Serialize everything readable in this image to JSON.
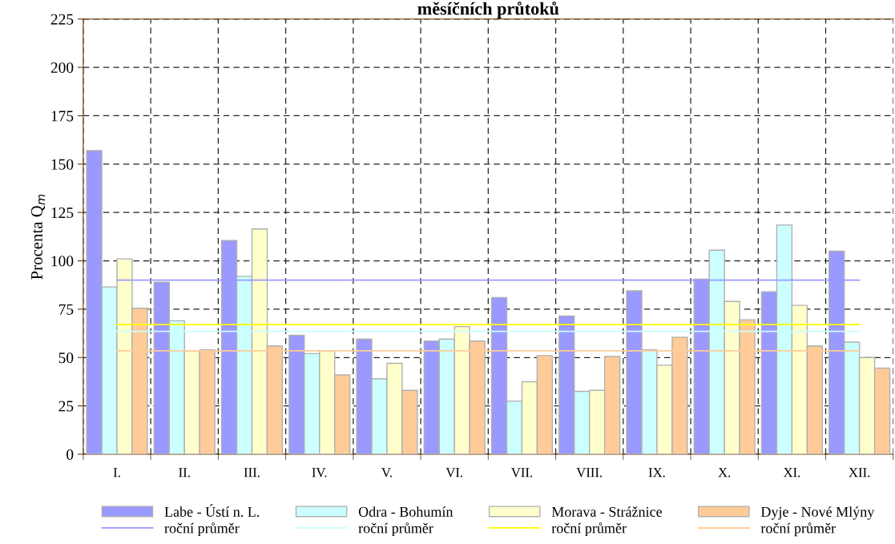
{
  "chart_data": {
    "type": "bar",
    "title": "měsíčních průtoků",
    "ylabel": "Procenta Q$_{m}$",
    "categories": [
      "I.",
      "II.",
      "III.",
      "IV.",
      "V.",
      "VI.",
      "VII.",
      "VIII.",
      "IX.",
      "X.",
      "XI.",
      "XII."
    ],
    "series": [
      {
        "name": "Labe - Ústí n. L.",
        "color": "#9999ff",
        "values": [
          157,
          89,
          110.5,
          61.5,
          59.5,
          58.5,
          81,
          71.5,
          84.5,
          90.5,
          84,
          105
        ]
      },
      {
        "name": "roční průměr",
        "type": "line",
        "color": "#9999ff",
        "values": [
          90,
          90,
          90,
          90,
          90,
          90,
          90,
          90,
          90,
          90,
          90,
          90
        ]
      },
      {
        "name": "Odra - Bohumín",
        "color": "#ccffff",
        "values": [
          86.5,
          69,
          92,
          52,
          39,
          59.5,
          27.5,
          32.5,
          54,
          105.5,
          118.5,
          58
        ]
      },
      {
        "name": "roční průměr",
        "type": "line",
        "color": "#ccffff",
        "values": [
          63.5,
          63.5,
          63.5,
          63.5,
          63.5,
          63.5,
          63.5,
          63.5,
          63.5,
          63.5,
          63.5,
          63.5
        ]
      },
      {
        "name": "Morava - Strážnice",
        "color": "#ffffcc",
        "values": [
          101,
          53.5,
          116.5,
          53.5,
          47,
          66,
          37.5,
          33,
          46,
          79,
          77,
          50
        ]
      },
      {
        "name": "roční průměr",
        "type": "line",
        "color": "#ffff00",
        "values": [
          67,
          67,
          67,
          67,
          67,
          67,
          67,
          67,
          67,
          67,
          67,
          67
        ]
      },
      {
        "name": "Dyje - Nové Mlýny",
        "color": "#ffcc99",
        "values": [
          75.5,
          54,
          56,
          41,
          33,
          58.5,
          51,
          50.5,
          60.5,
          69.5,
          56,
          44.5
        ]
      },
      {
        "name": "roční průměr",
        "type": "line",
        "color": "#ffcc99",
        "values": [
          53.5,
          53.5,
          53.5,
          53.5,
          53.5,
          53.5,
          53.5,
          53.5,
          53.5,
          53.5,
          53.5,
          53.5
        ]
      }
    ],
    "ylim": [
      0,
      225
    ],
    "yticks": [
      0,
      25,
      50,
      75,
      100,
      125,
      150,
      175,
      200,
      225
    ],
    "grid": true,
    "legend": "bottom",
    "line_style": "solid",
    "marker": "none"
  }
}
